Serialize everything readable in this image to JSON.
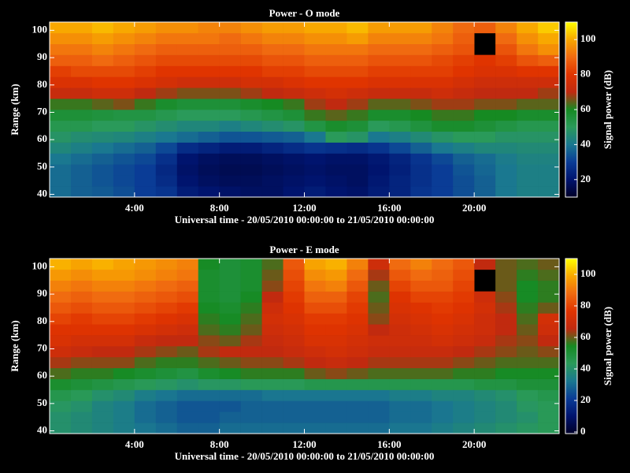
{
  "chart_data": [
    {
      "type": "heatmap",
      "title": "Power - O mode",
      "xlabel": "Universal time - 20/05/2010 00:00:00 to 21/05/2010 00:00:00",
      "ylabel": "Range (km)",
      "xlim": [
        0,
        24
      ],
      "xticks": [
        {
          "value": 4,
          "label": "4:00"
        },
        {
          "value": 8,
          "label": "8:00"
        },
        {
          "value": 12,
          "label": "12:00"
        },
        {
          "value": 16,
          "label": "16:00"
        },
        {
          "value": 20,
          "label": "20:00"
        }
      ],
      "ylim": [
        39,
        103
      ],
      "yticks": [
        40,
        50,
        60,
        70,
        80,
        90,
        100
      ],
      "x_bins": [
        0,
        1,
        2,
        3,
        4,
        5,
        6,
        7,
        8,
        9,
        10,
        11,
        12,
        13,
        14,
        15,
        16,
        17,
        18,
        19,
        20,
        21,
        22,
        23,
        24
      ],
      "y_bins": [
        39,
        43,
        47,
        51,
        55,
        59,
        63,
        67,
        71,
        75,
        79,
        83,
        87,
        91,
        95,
        99,
        103
      ],
      "values": [
        [
          38,
          36,
          35,
          33,
          30,
          28,
          22,
          20,
          19,
          18,
          18,
          20,
          22,
          20,
          19,
          22,
          24,
          28,
          30,
          33,
          36,
          40,
          42,
          42
        ],
        [
          38,
          36,
          34,
          32,
          30,
          26,
          20,
          18,
          17,
          17,
          18,
          19,
          20,
          19,
          18,
          21,
          24,
          27,
          30,
          33,
          36,
          40,
          42,
          42
        ],
        [
          38,
          36,
          34,
          32,
          30,
          25,
          19,
          17,
          16,
          16,
          17,
          18,
          19,
          18,
          18,
          20,
          23,
          27,
          30,
          34,
          37,
          40,
          42,
          42
        ],
        [
          40,
          38,
          36,
          34,
          32,
          27,
          20,
          18,
          17,
          17,
          18,
          19,
          20,
          19,
          19,
          21,
          24,
          28,
          32,
          36,
          38,
          41,
          43,
          43
        ],
        [
          44,
          42,
          40,
          38,
          36,
          32,
          26,
          24,
          22,
          22,
          24,
          26,
          28,
          27,
          26,
          28,
          32,
          36,
          40,
          42,
          44,
          44,
          45,
          45
        ],
        [
          48,
          46,
          45,
          44,
          42,
          40,
          38,
          36,
          34,
          34,
          35,
          36,
          40,
          50,
          48,
          40,
          42,
          45,
          48,
          50,
          50,
          48,
          48,
          48
        ],
        [
          52,
          52,
          50,
          50,
          48,
          46,
          44,
          44,
          42,
          44,
          46,
          48,
          54,
          58,
          56,
          50,
          52,
          55,
          58,
          58,
          56,
          54,
          52,
          52
        ],
        [
          56,
          56,
          55,
          54,
          54,
          52,
          50,
          50,
          50,
          52,
          54,
          56,
          62,
          64,
          62,
          58,
          58,
          60,
          62,
          62,
          60,
          60,
          58,
          58
        ],
        [
          62,
          62,
          64,
          66,
          62,
          58,
          56,
          56,
          56,
          58,
          60,
          62,
          68,
          70,
          68,
          64,
          64,
          66,
          68,
          68,
          66,
          66,
          64,
          64
        ],
        [
          72,
          72,
          74,
          74,
          70,
          68,
          66,
          66,
          66,
          68,
          70,
          72,
          74,
          76,
          74,
          72,
          72,
          72,
          74,
          72,
          70,
          70,
          70,
          68
        ],
        [
          78,
          78,
          80,
          80,
          78,
          76,
          74,
          74,
          74,
          76,
          76,
          78,
          80,
          80,
          80,
          78,
          78,
          78,
          78,
          76,
          74,
          74,
          74,
          74
        ],
        [
          82,
          84,
          84,
          84,
          82,
          80,
          80,
          80,
          80,
          80,
          82,
          82,
          84,
          84,
          84,
          82,
          82,
          82,
          82,
          80,
          78,
          78,
          80,
          80
        ],
        [
          88,
          88,
          90,
          88,
          86,
          84,
          84,
          84,
          84,
          84,
          86,
          86,
          88,
          88,
          88,
          86,
          86,
          86,
          84,
          82,
          80,
          82,
          86,
          88
        ],
        [
          92,
          92,
          94,
          92,
          90,
          88,
          88,
          88,
          88,
          88,
          90,
          90,
          92,
          92,
          92,
          90,
          90,
          90,
          88,
          86,
          null,
          86,
          92,
          96
        ],
        [
          96,
          96,
          98,
          96,
          94,
          92,
          92,
          92,
          90,
          92,
          94,
          94,
          96,
          96,
          98,
          94,
          94,
          94,
          92,
          88,
          null,
          90,
          96,
          100
        ],
        [
          100,
          100,
          102,
          100,
          98,
          96,
          96,
          94,
          94,
          96,
          98,
          98,
          100,
          100,
          102,
          98,
          98,
          98,
          94,
          90,
          88,
          94,
          100,
          104
        ]
      ],
      "colorbar": {
        "label": "Signal power (dB)",
        "lim": [
          10,
          110
        ],
        "ticks": [
          20,
          40,
          60,
          80,
          100
        ]
      },
      "colormap": [
        "#000028",
        "#00146e",
        "#0a3c96",
        "#1a7890",
        "#2a9a5a",
        "#168a22",
        "#c02a10",
        "#e03400",
        "#f06a10",
        "#f8a800",
        "#ffff00"
      ]
    },
    {
      "type": "heatmap",
      "title": "Power - E mode",
      "xlabel": "Universal time - 20/05/2010 00:00:00 to 21/05/2010 00:00:00",
      "ylabel": "Range (km)",
      "xlim": [
        0,
        24
      ],
      "xticks": [
        {
          "value": 4,
          "label": "4:00"
        },
        {
          "value": 8,
          "label": "8:00"
        },
        {
          "value": 12,
          "label": "12:00"
        },
        {
          "value": 16,
          "label": "16:00"
        },
        {
          "value": 20,
          "label": "20:00"
        }
      ],
      "ylim": [
        39,
        103
      ],
      "yticks": [
        40,
        50,
        60,
        70,
        80,
        90,
        100
      ],
      "x_bins": [
        0,
        1,
        2,
        3,
        4,
        5,
        6,
        7,
        8,
        9,
        10,
        11,
        12,
        13,
        14,
        15,
        16,
        17,
        18,
        19,
        20,
        21,
        22,
        23,
        24
      ],
      "y_bins": [
        39,
        43,
        47,
        51,
        55,
        59,
        63,
        67,
        71,
        75,
        79,
        83,
        87,
        91,
        95,
        99,
        103
      ],
      "values": [
        [
          40,
          38,
          36,
          34,
          32,
          30,
          28,
          28,
          30,
          30,
          30,
          30,
          30,
          30,
          30,
          30,
          32,
          32,
          34,
          36,
          38,
          40,
          42,
          44
        ],
        [
          40,
          38,
          36,
          34,
          30,
          28,
          26,
          26,
          28,
          28,
          28,
          28,
          28,
          28,
          28,
          28,
          30,
          30,
          32,
          34,
          36,
          38,
          40,
          44
        ],
        [
          42,
          40,
          36,
          34,
          30,
          28,
          26,
          26,
          26,
          28,
          28,
          28,
          28,
          28,
          28,
          28,
          30,
          30,
          32,
          34,
          36,
          38,
          42,
          44
        ],
        [
          46,
          44,
          40,
          38,
          34,
          32,
          30,
          30,
          30,
          30,
          32,
          32,
          32,
          32,
          32,
          32,
          34,
          34,
          36,
          36,
          38,
          40,
          44,
          46
        ],
        [
          52,
          50,
          48,
          46,
          44,
          42,
          40,
          42,
          42,
          44,
          44,
          44,
          46,
          46,
          46,
          46,
          46,
          46,
          46,
          46,
          48,
          48,
          50,
          50
        ],
        [
          58,
          56,
          56,
          54,
          52,
          50,
          48,
          52,
          54,
          56,
          56,
          56,
          60,
          62,
          60,
          58,
          58,
          58,
          58,
          56,
          56,
          54,
          54,
          54
        ],
        [
          64,
          62,
          62,
          62,
          58,
          56,
          56,
          58,
          60,
          62,
          62,
          64,
          66,
          68,
          66,
          64,
          64,
          64,
          64,
          62,
          60,
          58,
          58,
          58
        ],
        [
          70,
          68,
          66,
          66,
          64,
          62,
          60,
          64,
          66,
          66,
          66,
          68,
          70,
          72,
          70,
          68,
          68,
          68,
          68,
          66,
          64,
          62,
          60,
          62
        ],
        [
          74,
          72,
          72,
          72,
          68,
          66,
          66,
          62,
          60,
          64,
          68,
          70,
          74,
          74,
          72,
          70,
          70,
          70,
          72,
          70,
          68,
          64,
          62,
          66
        ],
        [
          76,
          76,
          76,
          76,
          74,
          72,
          70,
          58,
          56,
          60,
          70,
          72,
          76,
          76,
          74,
          66,
          70,
          72,
          74,
          72,
          70,
          66,
          60,
          70
        ],
        [
          80,
          78,
          80,
          80,
          78,
          76,
          74,
          56,
          54,
          58,
          72,
          74,
          78,
          78,
          76,
          62,
          72,
          74,
          76,
          74,
          70,
          66,
          58,
          72
        ],
        [
          84,
          82,
          84,
          84,
          82,
          80,
          78,
          54,
          52,
          56,
          70,
          76,
          82,
          82,
          78,
          60,
          74,
          76,
          78,
          76,
          72,
          64,
          56,
          60
        ],
        [
          88,
          86,
          88,
          88,
          86,
          84,
          82,
          52,
          50,
          54,
          66,
          78,
          86,
          86,
          80,
          58,
          76,
          80,
          80,
          78,
          70,
          62,
          54,
          56
        ],
        [
          92,
          90,
          92,
          92,
          90,
          88,
          86,
          52,
          50,
          52,
          62,
          80,
          90,
          92,
          84,
          60,
          80,
          84,
          84,
          80,
          null,
          60,
          54,
          56
        ],
        [
          96,
          94,
          96,
          96,
          94,
          92,
          90,
          52,
          50,
          52,
          60,
          82,
          94,
          96,
          88,
          64,
          84,
          88,
          86,
          82,
          null,
          60,
          56,
          58
        ],
        [
          100,
          98,
          100,
          98,
          96,
          94,
          92,
          54,
          50,
          52,
          58,
          84,
          98,
          100,
          92,
          70,
          88,
          92,
          88,
          84,
          66,
          60,
          58,
          60
        ]
      ],
      "colorbar": {
        "label": "Signal power (dB)",
        "lim": [
          -1,
          110
        ],
        "ticks": [
          0,
          20,
          40,
          60,
          80,
          100
        ]
      },
      "colormap": [
        "#000028",
        "#00146e",
        "#0a3c96",
        "#1a7890",
        "#2a9a5a",
        "#168a22",
        "#c02a10",
        "#e03400",
        "#f06a10",
        "#f8a800",
        "#ffff00"
      ]
    }
  ]
}
